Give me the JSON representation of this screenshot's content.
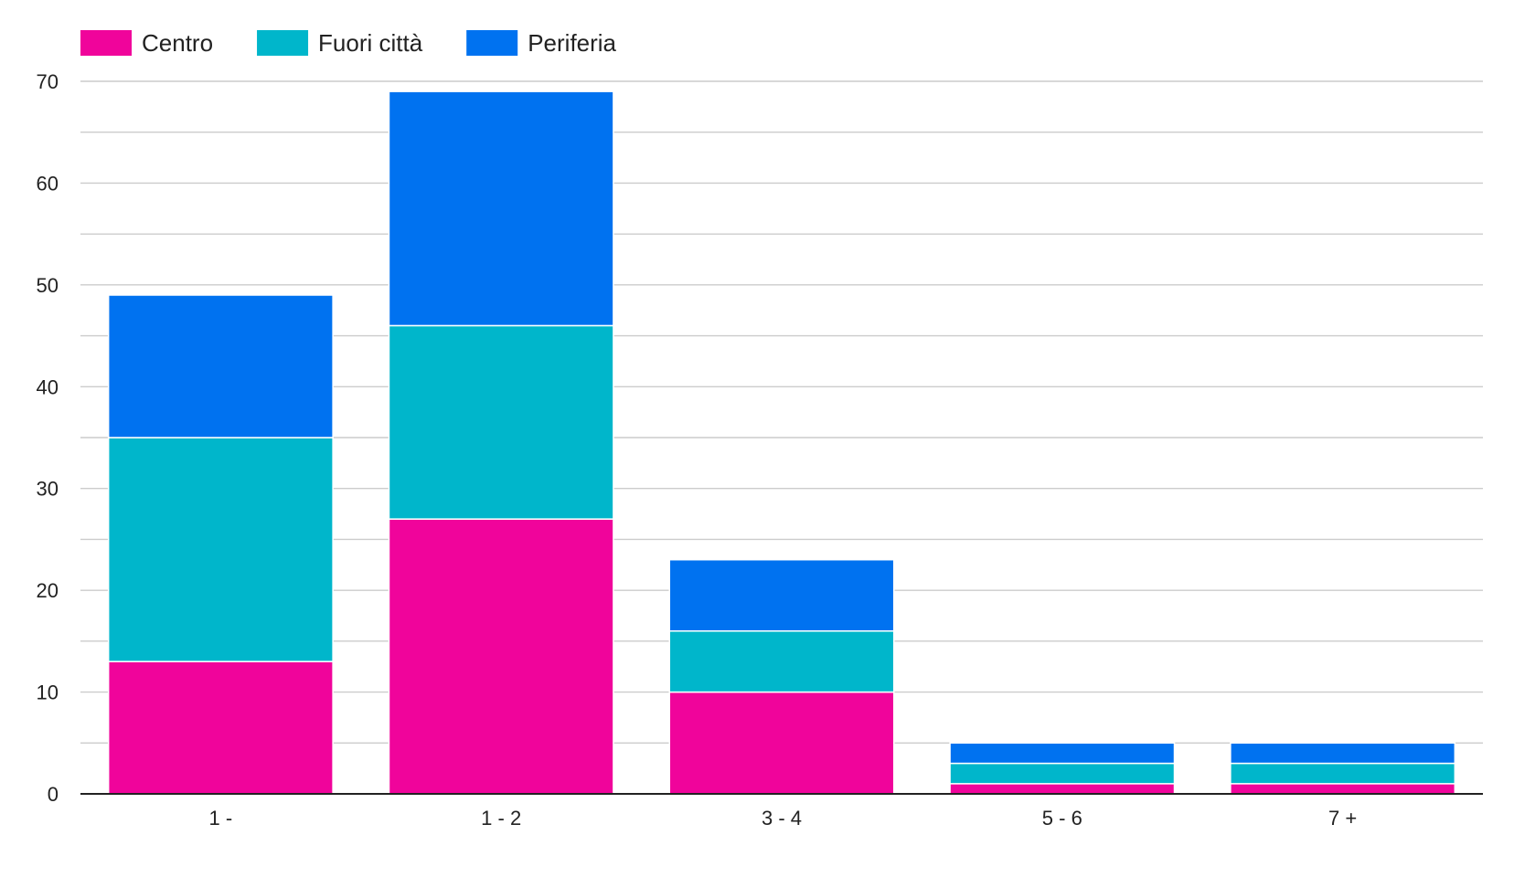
{
  "chart_data": {
    "type": "bar",
    "stacked": true,
    "title": "",
    "xlabel": "",
    "ylabel": "",
    "categories": [
      "1 -",
      "1 - 2",
      "3 - 4",
      "5 - 6",
      "7 +"
    ],
    "series": [
      {
        "name": "Centro",
        "color": "#f0049b",
        "values": [
          13,
          27,
          10,
          1,
          1
        ]
      },
      {
        "name": "Fuori città",
        "color": "#00b6cb",
        "values": [
          22,
          19,
          6,
          2,
          2
        ]
      },
      {
        "name": "Periferia",
        "color": "#0072f0",
        "values": [
          14,
          23,
          7,
          2,
          2
        ]
      }
    ],
    "ylim": [
      0,
      70
    ],
    "yticks": [
      0,
      10,
      20,
      30,
      40,
      50,
      60,
      70
    ],
    "grid": true,
    "minor_grid": true,
    "legend_position": "top-left"
  }
}
